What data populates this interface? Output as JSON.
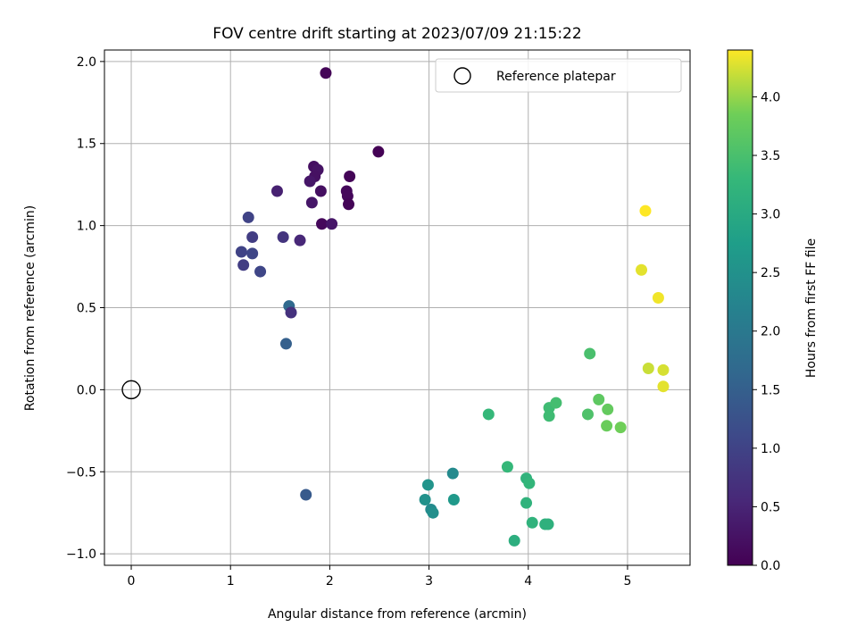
{
  "chart_data": {
    "type": "scatter",
    "title": "FOV centre drift starting at 2023/07/09 21:15:22",
    "xlabel": "Angular distance from reference (arcmin)",
    "ylabel": "Rotation from reference (arcmin)",
    "xlim": [
      -0.27,
      5.63
    ],
    "ylim": [
      -1.07,
      2.07
    ],
    "xticks": [
      0,
      1,
      2,
      3,
      4,
      5
    ],
    "yticks": [
      -1.0,
      -0.5,
      0.0,
      0.5,
      1.0,
      1.5,
      2.0
    ],
    "grid": true,
    "legend": {
      "placement": "top-right",
      "entries": [
        "Reference platepar"
      ]
    },
    "reference": {
      "x": 0,
      "y": 0
    },
    "colorbar": {
      "label": "Hours from first FF file",
      "range": [
        0.0,
        4.4
      ],
      "ticks": [
        0.0,
        0.5,
        1.0,
        1.5,
        2.0,
        2.5,
        3.0,
        3.5,
        4.0
      ],
      "colormap": "viridis"
    },
    "points": [
      {
        "x": 1.96,
        "y": 1.93,
        "t": 0.05
      },
      {
        "x": 2.49,
        "y": 1.45,
        "t": 0.02
      },
      {
        "x": 1.84,
        "y": 1.36,
        "t": 0.2
      },
      {
        "x": 1.88,
        "y": 1.34,
        "t": 0.25
      },
      {
        "x": 1.85,
        "y": 1.3,
        "t": 0.22
      },
      {
        "x": 2.2,
        "y": 1.3,
        "t": 0.05
      },
      {
        "x": 1.8,
        "y": 1.27,
        "t": 0.3
      },
      {
        "x": 1.47,
        "y": 1.21,
        "t": 0.45
      },
      {
        "x": 1.91,
        "y": 1.21,
        "t": 0.2
      },
      {
        "x": 2.17,
        "y": 1.21,
        "t": 0.1
      },
      {
        "x": 2.18,
        "y": 1.18,
        "t": 0.1
      },
      {
        "x": 1.82,
        "y": 1.14,
        "t": 0.3
      },
      {
        "x": 2.19,
        "y": 1.13,
        "t": 0.05
      },
      {
        "x": 1.18,
        "y": 1.05,
        "t": 1.0
      },
      {
        "x": 1.92,
        "y": 1.01,
        "t": 0.1
      },
      {
        "x": 2.02,
        "y": 1.01,
        "t": 0.3
      },
      {
        "x": 1.22,
        "y": 0.93,
        "t": 0.9
      },
      {
        "x": 1.53,
        "y": 0.93,
        "t": 0.75
      },
      {
        "x": 1.7,
        "y": 0.91,
        "t": 0.55
      },
      {
        "x": 1.11,
        "y": 0.84,
        "t": 1.0
      },
      {
        "x": 1.22,
        "y": 0.83,
        "t": 1.05
      },
      {
        "x": 1.13,
        "y": 0.76,
        "t": 0.9
      },
      {
        "x": 1.3,
        "y": 0.72,
        "t": 1.05
      },
      {
        "x": 1.59,
        "y": 0.51,
        "t": 1.7
      },
      {
        "x": 1.61,
        "y": 0.47,
        "t": 0.7
      },
      {
        "x": 1.56,
        "y": 0.28,
        "t": 1.5
      },
      {
        "x": 1.76,
        "y": -0.64,
        "t": 1.4
      },
      {
        "x": 2.99,
        "y": -0.58,
        "t": 2.55
      },
      {
        "x": 3.24,
        "y": -0.51,
        "t": 2.35
      },
      {
        "x": 2.96,
        "y": -0.67,
        "t": 2.5
      },
      {
        "x": 3.25,
        "y": -0.67,
        "t": 2.65
      },
      {
        "x": 3.02,
        "y": -0.73,
        "t": 2.35
      },
      {
        "x": 3.04,
        "y": -0.75,
        "t": 2.45
      },
      {
        "x": 3.6,
        "y": -0.15,
        "t": 3.3
      },
      {
        "x": 3.79,
        "y": -0.47,
        "t": 3.3
      },
      {
        "x": 3.98,
        "y": -0.54,
        "t": 3.2
      },
      {
        "x": 4.01,
        "y": -0.57,
        "t": 3.25
      },
      {
        "x": 3.98,
        "y": -0.69,
        "t": 3.2
      },
      {
        "x": 4.04,
        "y": -0.81,
        "t": 3.2
      },
      {
        "x": 4.17,
        "y": -0.82,
        "t": 3.15
      },
      {
        "x": 4.2,
        "y": -0.82,
        "t": 3.15
      },
      {
        "x": 3.86,
        "y": -0.92,
        "t": 3.1
      },
      {
        "x": 4.21,
        "y": -0.11,
        "t": 3.4
      },
      {
        "x": 4.21,
        "y": -0.16,
        "t": 3.4
      },
      {
        "x": 4.28,
        "y": -0.08,
        "t": 3.45
      },
      {
        "x": 4.62,
        "y": 0.22,
        "t": 3.5
      },
      {
        "x": 4.6,
        "y": -0.15,
        "t": 3.55
      },
      {
        "x": 4.71,
        "y": -0.06,
        "t": 3.7
      },
      {
        "x": 4.8,
        "y": -0.12,
        "t": 3.75
      },
      {
        "x": 4.79,
        "y": -0.22,
        "t": 3.8
      },
      {
        "x": 4.93,
        "y": -0.23,
        "t": 3.85
      },
      {
        "x": 5.18,
        "y": 1.09,
        "t": 4.4
      },
      {
        "x": 5.14,
        "y": 0.73,
        "t": 4.3
      },
      {
        "x": 5.31,
        "y": 0.56,
        "t": 4.35
      },
      {
        "x": 5.21,
        "y": 0.13,
        "t": 4.2
      },
      {
        "x": 5.36,
        "y": 0.12,
        "t": 4.25
      },
      {
        "x": 5.36,
        "y": 0.02,
        "t": 4.3
      }
    ]
  }
}
